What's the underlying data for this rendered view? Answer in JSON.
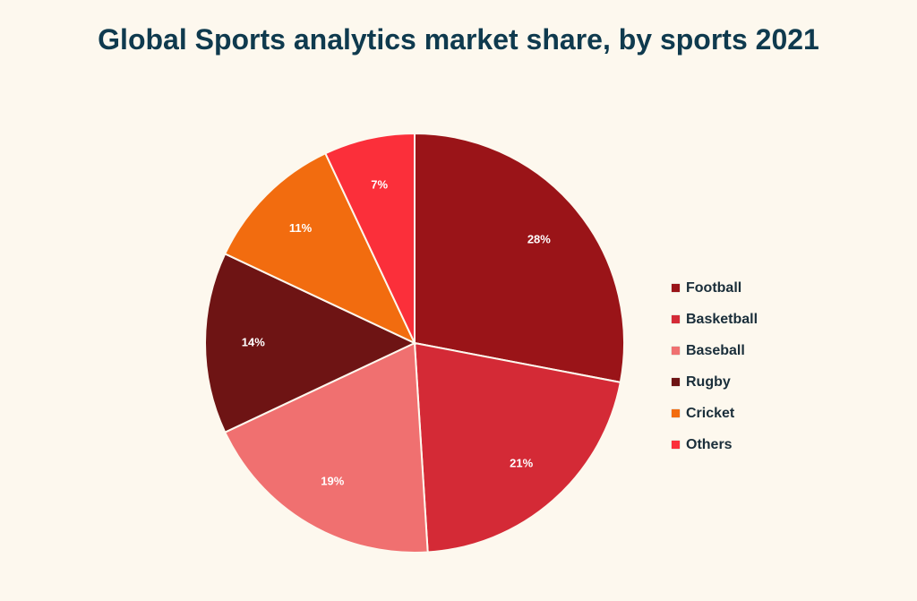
{
  "chart_data": {
    "type": "pie",
    "title": "Global Sports analytics market share, by sports 2021",
    "slices": [
      {
        "name": "Football",
        "value": 28,
        "label": "28%",
        "color": "#9a1418"
      },
      {
        "name": "Basketball",
        "value": 21,
        "label": "21%",
        "color": "#d42a36"
      },
      {
        "name": "Baseball",
        "value": 19,
        "label": "19%",
        "color": "#f07070"
      },
      {
        "name": "Rugby",
        "value": 14,
        "label": "14%",
        "color": "#6e1414"
      },
      {
        "name": "Cricket",
        "value": 11,
        "label": "11%",
        "color": "#f26c0f"
      },
      {
        "name": "Others",
        "value": 7,
        "label": "7%",
        "color": "#fb2f3a"
      }
    ],
    "legend_position": "right"
  }
}
